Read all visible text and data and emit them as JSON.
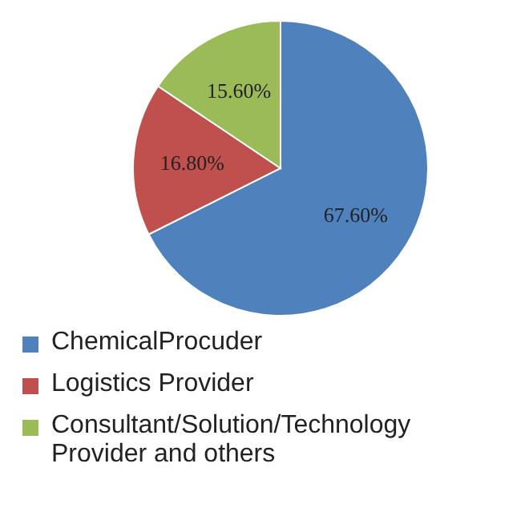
{
  "chart_data": {
    "type": "pie",
    "categories": [
      "ChemicalProcuder",
      "Logistics Provider",
      "Consultant/Solution/Technology Provider and others"
    ],
    "values": [
      67.6,
      16.8,
      15.6
    ],
    "colors": [
      "#4f81bd",
      "#c0504d",
      "#9bbb59"
    ],
    "value_labels": [
      "67.60%",
      "16.80%",
      "15.60%"
    ],
    "legend": "bottom"
  }
}
